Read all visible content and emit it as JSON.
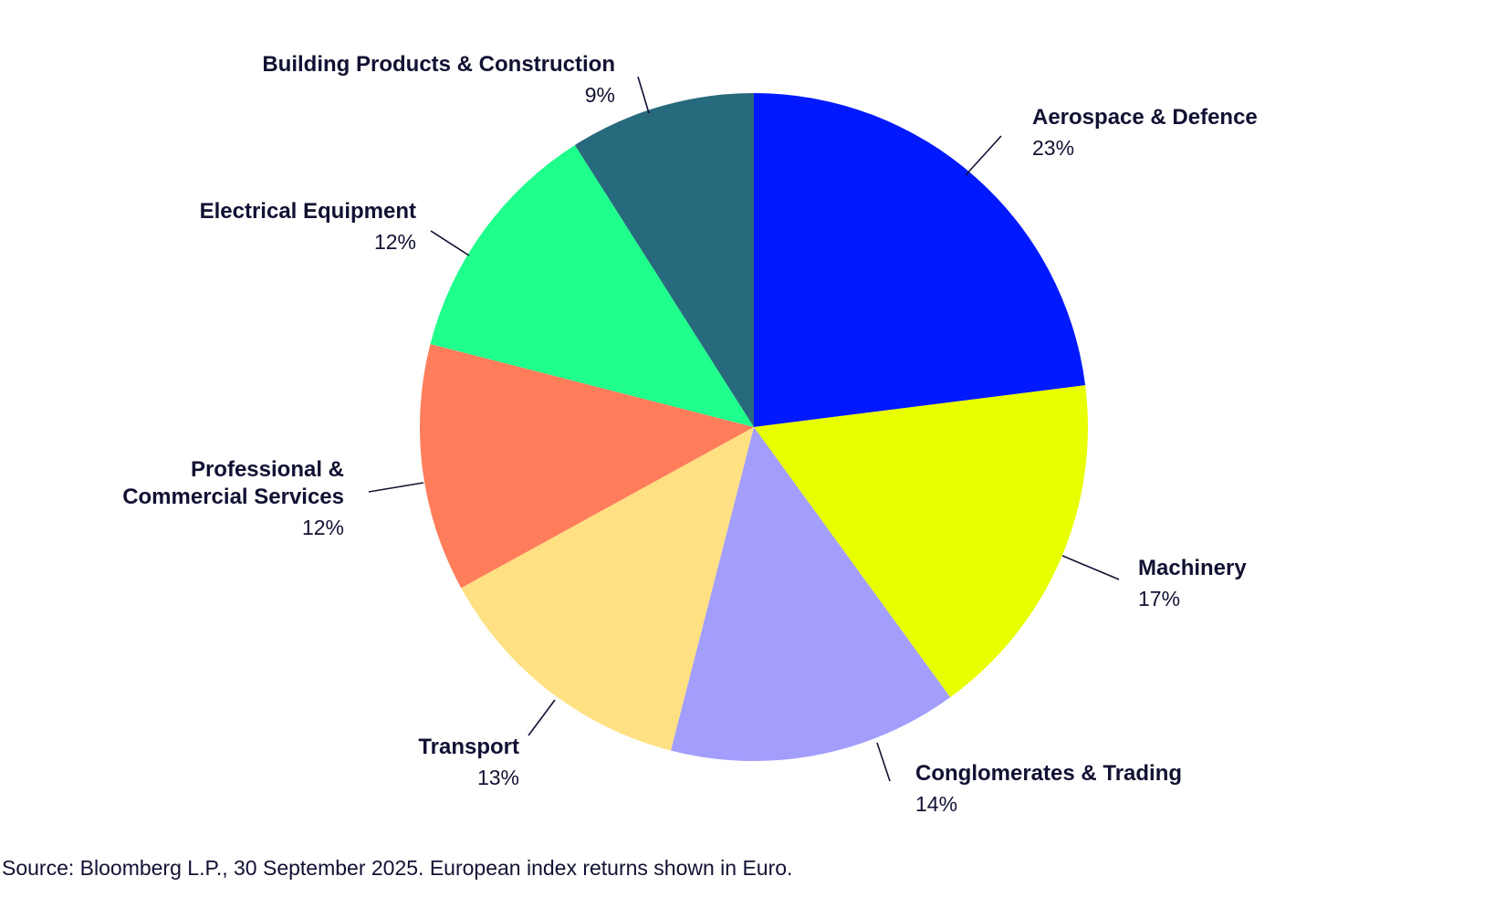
{
  "chart_data": {
    "type": "pie",
    "slices": [
      {
        "label": [
          "Aerospace & Defence"
        ],
        "percent_label": "23%",
        "value": 23,
        "color": "#0019FF"
      },
      {
        "label": [
          "Machinery"
        ],
        "percent_label": "17%",
        "value": 17,
        "color": "#E8FF00"
      },
      {
        "label": [
          "Conglomerates & Trading"
        ],
        "percent_label": "14%",
        "value": 14,
        "color": "#A39DFC"
      },
      {
        "label": [
          "Transport"
        ],
        "percent_label": "13%",
        "value": 13,
        "color": "#FFE082"
      },
      {
        "label": [
          "Professional &",
          "Commercial Services"
        ],
        "percent_label": "12%",
        "value": 12,
        "color": "#FF7D5A"
      },
      {
        "label": [
          "Electrical Equipment"
        ],
        "percent_label": "12%",
        "value": 12,
        "color": "#1EFF8C"
      },
      {
        "label": [
          "Building Products & Construction"
        ],
        "percent_label": "9%",
        "value": 9,
        "color": "#27697D"
      }
    ],
    "start_angle": "12 o'clock",
    "direction": "clockwise",
    "legend": "none (direct labels with leader lines)"
  },
  "footer": {
    "source": "Source: Bloomberg L.P., 30 September 2025. European index returns shown in Euro."
  }
}
